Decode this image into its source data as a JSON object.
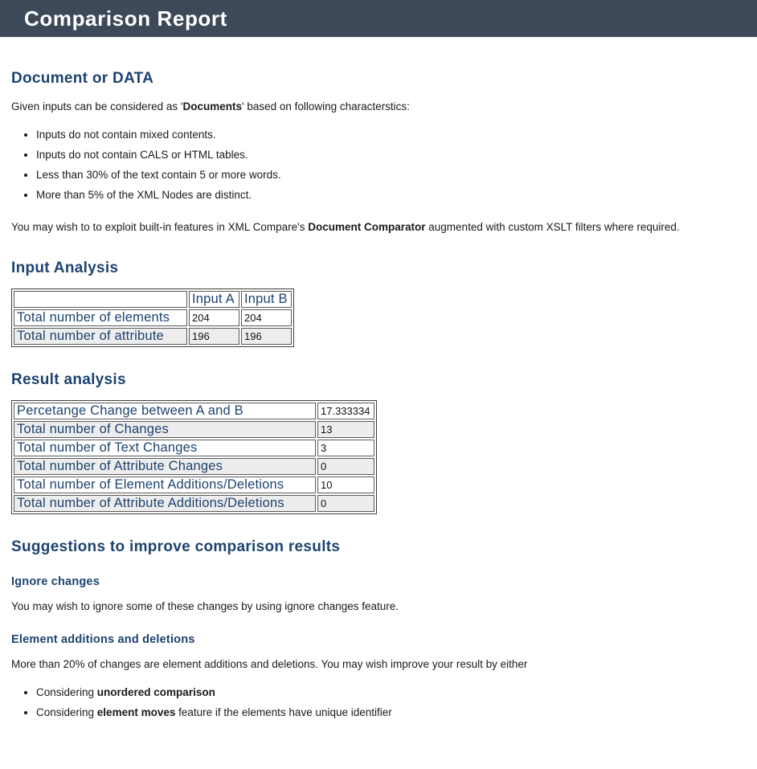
{
  "header": {
    "title": "Comparison Report"
  },
  "colors": {
    "header_bg": "#3d4959",
    "heading_blue": "#1d4370",
    "row_alt": "#ededed"
  },
  "document_section": {
    "heading": "Document or DATA",
    "intro_prefix": "Given inputs can be considered as '",
    "intro_bold": "Documents",
    "intro_suffix": "' based on following characterstics:",
    "criteria": [
      "Inputs do not contain mixed contents.",
      "Inputs do not contain CALS or HTML tables.",
      "Less than 30% of the text contain 5 or more words.",
      "More than 5% of the XML Nodes are distinct."
    ],
    "note_prefix": "You may wish to to exploit built-in features in XML Compare's ",
    "note_bold": "Document Comparator",
    "note_suffix": " augmented with custom XSLT filters where required."
  },
  "input_analysis": {
    "heading": "Input Analysis",
    "columns": {
      "blank": "",
      "a": "Input A",
      "b": "Input B"
    },
    "rows": [
      {
        "label": "Total number of elements",
        "a": "204",
        "b": "204"
      },
      {
        "label": "Total number of attribute",
        "a": "196",
        "b": "196"
      }
    ]
  },
  "result_analysis": {
    "heading": "Result analysis",
    "rows": [
      {
        "label": "Percetange Change between A and B",
        "value": "17.333334"
      },
      {
        "label": "Total number of Changes",
        "value": "13"
      },
      {
        "label": "Total number of Text Changes",
        "value": "3"
      },
      {
        "label": "Total number of Attribute Changes",
        "value": "0"
      },
      {
        "label": "Total number of Element Additions/Deletions",
        "value": "10"
      },
      {
        "label": "Total number of Attribute Additions/Deletions",
        "value": "0"
      }
    ]
  },
  "suggestions": {
    "heading": "Suggestions to improve comparison results",
    "ignore": {
      "heading": "Ignore changes",
      "text": "You may wish to ignore some of these changes by using ignore changes feature."
    },
    "additions": {
      "heading": "Element additions and deletions",
      "text": "More than 20% of changes are element additions and deletions. You may wish improve your result by either",
      "options": [
        {
          "prefix": "Considering ",
          "bold": "unordered comparison",
          "suffix": ""
        },
        {
          "prefix": "Considering ",
          "bold": "element moves",
          "suffix": " feature if the elements have unique identifier"
        }
      ]
    }
  }
}
